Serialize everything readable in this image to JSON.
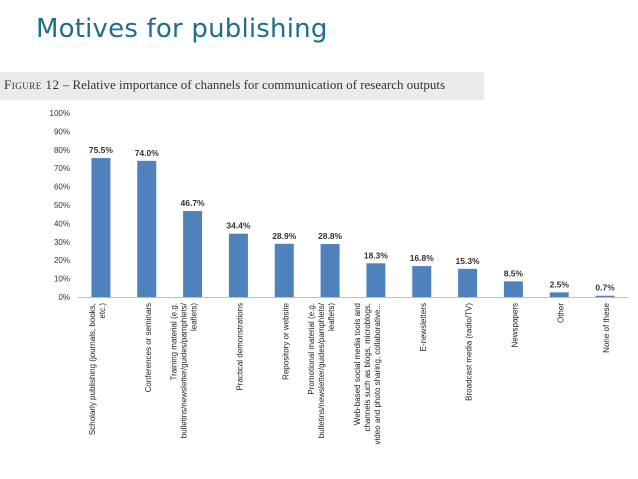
{
  "slide": {
    "title": "Motives for publishing"
  },
  "figure": {
    "caption_prefix": "Figure 12",
    "caption_text": " – Relative importance of channels for communication of research outputs"
  },
  "chart_data": {
    "type": "bar",
    "title": "Relative importance of channels for communication of research outputs",
    "xlabel": "",
    "ylabel": "",
    "ylim": [
      0,
      100
    ],
    "y_ticks": [
      "0%",
      "10%",
      "20%",
      "30%",
      "40%",
      "50%",
      "60%",
      "70%",
      "80%",
      "90%",
      "100%"
    ],
    "bar_color": "#4f81bd",
    "grid": false,
    "categories": [
      [
        "Scholarly publishing (journals, books,",
        "etc.)"
      ],
      [
        "Conferences or seminars"
      ],
      [
        "Training material (e.g.",
        "bulletins/newsletter/guides/pamphlets/",
        "leaflets)"
      ],
      [
        "Practical demonstrations"
      ],
      [
        "Repository or website"
      ],
      [
        "Promotional material (e.g.",
        "bulletins/newsletter/guides/pamphlets/",
        "leaflets)"
      ],
      [
        "Web-based social media tools and",
        "channels such as blogs, microblogs,",
        "video and photo sharing, collaborative..."
      ],
      [
        "E-newsletters"
      ],
      [
        "Broadcast media (radio/TV)"
      ],
      [
        "Newspapers"
      ],
      [
        "Other"
      ],
      [
        "None of these"
      ]
    ],
    "values": [
      75.5,
      74.0,
      46.7,
      34.4,
      28.9,
      28.8,
      18.3,
      16.8,
      15.3,
      8.5,
      2.5,
      0.7
    ],
    "value_labels": [
      "75.5%",
      "74.0%",
      "46.7%",
      "34.4%",
      "28.9%",
      "28.8%",
      "18.3%",
      "16.8%",
      "15.3%",
      "8.5%",
      "2.5%",
      "0.7%"
    ]
  }
}
